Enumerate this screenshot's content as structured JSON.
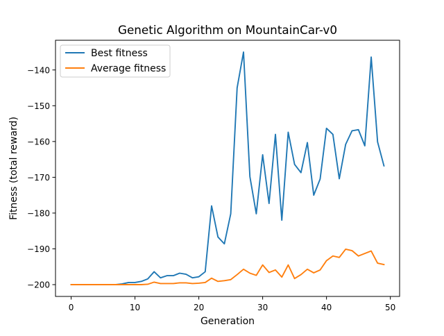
{
  "chart_data": {
    "type": "line",
    "title": "Genetic Algorithm on MountainCar-v0",
    "xlabel": "Generation",
    "ylabel": "Fitness (total reward)",
    "xlim": [
      -2.45,
      51.45
    ],
    "ylim": [
      -203.3,
      -131.7
    ],
    "x_ticks": [
      0,
      10,
      20,
      30,
      40,
      50
    ],
    "y_ticks": [
      -200,
      -190,
      -180,
      -170,
      -160,
      -150,
      -140
    ],
    "x_tick_labels": [
      "0",
      "10",
      "20",
      "30",
      "40",
      "50"
    ],
    "y_tick_labels": [
      "−200",
      "−190",
      "−180",
      "−170",
      "−160",
      "−150",
      "−140"
    ],
    "grid": false,
    "legend_position": "top-left",
    "x": [
      0,
      1,
      2,
      3,
      4,
      5,
      6,
      7,
      8,
      9,
      10,
      11,
      12,
      13,
      14,
      15,
      16,
      17,
      18,
      19,
      20,
      21,
      22,
      23,
      24,
      25,
      26,
      27,
      28,
      29,
      30,
      31,
      32,
      33,
      34,
      35,
      36,
      37,
      38,
      39,
      40,
      41,
      42,
      43,
      44,
      45,
      46,
      47,
      48,
      49
    ],
    "series": [
      {
        "name": "Best fitness",
        "color": "#1f77b4",
        "values": [
          -200,
          -200,
          -200,
          -200,
          -200,
          -200,
          -200,
          -200,
          -199.8,
          -199.4,
          -199.4,
          -199.1,
          -198.4,
          -196.4,
          -198.1,
          -197.5,
          -197.5,
          -196.8,
          -197.1,
          -198.1,
          -197.8,
          -196.4,
          -178,
          -186.7,
          -188.6,
          -180.2,
          -145,
          -135,
          -169.8,
          -180.2,
          -163.7,
          -177.3,
          -158,
          -182,
          -157.4,
          -166.4,
          -168.7,
          -160.3,
          -175,
          -170.5,
          -156.3,
          -158,
          -170.4,
          -160.8,
          -157,
          -156.7,
          -161.2,
          -136.4,
          -160.1,
          -166.8
        ]
      },
      {
        "name": "Average fitness",
        "color": "#ff7f0e",
        "values": [
          -200,
          -200,
          -200,
          -200,
          -200,
          -200,
          -200,
          -200,
          -200,
          -200,
          -200,
          -200,
          -199.9,
          -199.3,
          -199.7,
          -199.7,
          -199.7,
          -199.5,
          -199.5,
          -199.7,
          -199.6,
          -199.4,
          -198.2,
          -199.1,
          -198.9,
          -198.6,
          -197.2,
          -195.7,
          -196.8,
          -197.4,
          -194.5,
          -196.6,
          -195.9,
          -197.9,
          -194.5,
          -198.3,
          -197.2,
          -195.7,
          -196.7,
          -195.9,
          -193.3,
          -192,
          -192.4,
          -190.1,
          -190.5,
          -192,
          -191.3,
          -190.6,
          -194,
          -194.4
        ]
      }
    ]
  }
}
